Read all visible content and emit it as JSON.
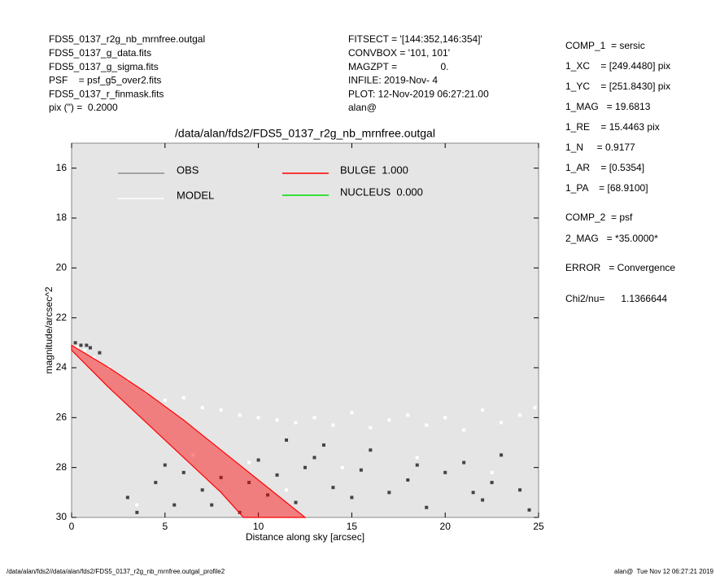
{
  "header": {
    "left": [
      "FDS5_0137_r2g_nb_mrnfree.outgal",
      "FDS5_0137_g_data.fits",
      "FDS5_0137_g_sigma.fits",
      "PSF    = psf_g5_over2.fits",
      "FDS5_0137_r_finmask.fits",
      "pix (\") =  0.2000"
    ],
    "middle": [
      "FITSECT = '[144:352,146:354]'",
      "CONVBOX = '101, 101'",
      "MAGZPT =                0.",
      "INFILE: 2019-Nov- 4",
      "PLOT: 12-Nov-2019 06:27:21.00",
      "alan@"
    ],
    "right": [
      "COMP_1  = sersic",
      "1_XC    = [249.4480] pix",
      "1_YC    = [251.8430] pix",
      "1_MAG   = 19.6813",
      "1_RE    = 15.4463 pix",
      "1_N     = 0.9177",
      "1_AR    = [0.5354]",
      "1_PA    = [68.9100]",
      "COMP_2  = psf",
      "2_MAG   = *35.0000*",
      "ERROR   = Convergence",
      "Chi2/nu=      1.1366644"
    ]
  },
  "footer": {
    "left": "/data/alan/fds2//data/alan/fds2/FDS5_0137_r2g_nb_mrnfree.outgal_profile2",
    "right": "alan@  Tue Nov 12 06:27:21 2019"
  },
  "chart_data": {
    "type": "scatter",
    "title": "/data/alan/fds2/FDS5_0137_r2g_nb_mrnfree.outgal",
    "xlabel": "Distance along sky [arcsec]",
    "ylabel": "magnitude/arcsec^2",
    "xlim": [
      0,
      25
    ],
    "xticks": [
      0,
      5,
      10,
      15,
      20,
      25
    ],
    "ylim": [
      30,
      15
    ],
    "yticks": [
      16,
      18,
      20,
      22,
      24,
      26,
      28,
      30
    ],
    "series": [
      {
        "name": "OBS",
        "color": "#8c8c8c",
        "point_color": "#444444",
        "x": [
          0.2,
          0.5,
          0.8,
          1.0,
          1.5,
          3,
          4.5,
          5,
          6,
          7,
          7.5,
          8,
          9,
          9.5,
          10,
          10.5,
          11,
          12,
          12.5,
          13,
          14,
          15,
          15.5,
          16,
          17,
          18,
          18.5,
          19,
          20,
          21,
          22,
          22.5,
          23,
          24,
          24.5,
          3.5,
          5.5,
          11.5,
          13.5,
          21.5
        ],
        "values": [
          23.0,
          23.1,
          23.1,
          23.2,
          23.4,
          29.2,
          28.6,
          27.9,
          28.2,
          28.9,
          29.5,
          28.4,
          29.8,
          28.6,
          27.7,
          29.1,
          28.3,
          29.4,
          28.0,
          27.6,
          28.8,
          29.2,
          28.1,
          27.3,
          29.0,
          28.5,
          27.9,
          29.6,
          28.2,
          27.8,
          29.3,
          28.6,
          27.5,
          28.9,
          29.7,
          29.8,
          29.5,
          26.9,
          27.1,
          29.0
        ]
      },
      {
        "name": "MODEL",
        "color": "#ffffff",
        "point_color": "#ffffff",
        "x": [
          0.3,
          0.7,
          1.2,
          2,
          3,
          4,
          5,
          6,
          7,
          8,
          9,
          10,
          11,
          12,
          13,
          14,
          15,
          16,
          17,
          18,
          19,
          20,
          21,
          22,
          23,
          24,
          24.8,
          6.5,
          9.5,
          14.5,
          18.5,
          22.5,
          3.5,
          11.5
        ],
        "values": [
          23.2,
          23.3,
          23.6,
          24.0,
          24.5,
          25.0,
          25.3,
          25.2,
          25.6,
          25.7,
          25.9,
          26.0,
          26.1,
          26.2,
          26.0,
          26.3,
          25.8,
          26.4,
          26.1,
          25.9,
          26.3,
          26.0,
          26.5,
          25.7,
          26.2,
          25.9,
          25.6,
          27.5,
          27.8,
          28.0,
          27.6,
          28.2,
          29.5,
          28.9
        ]
      },
      {
        "name": "BULGE  1.000",
        "color": "#ff0000",
        "line": true,
        "x": [
          0,
          2,
          4,
          6,
          8,
          10,
          12.5,
          9.2,
          8,
          6,
          4,
          2,
          0
        ],
        "values": [
          23.1,
          24.0,
          25.0,
          26.1,
          27.3,
          28.5,
          30,
          30,
          29.0,
          27.6,
          26.2,
          24.8,
          23.3
        ]
      },
      {
        "name": "NUCLEUS  0.000",
        "color": "#00dd00",
        "x": [],
        "values": []
      }
    ]
  }
}
